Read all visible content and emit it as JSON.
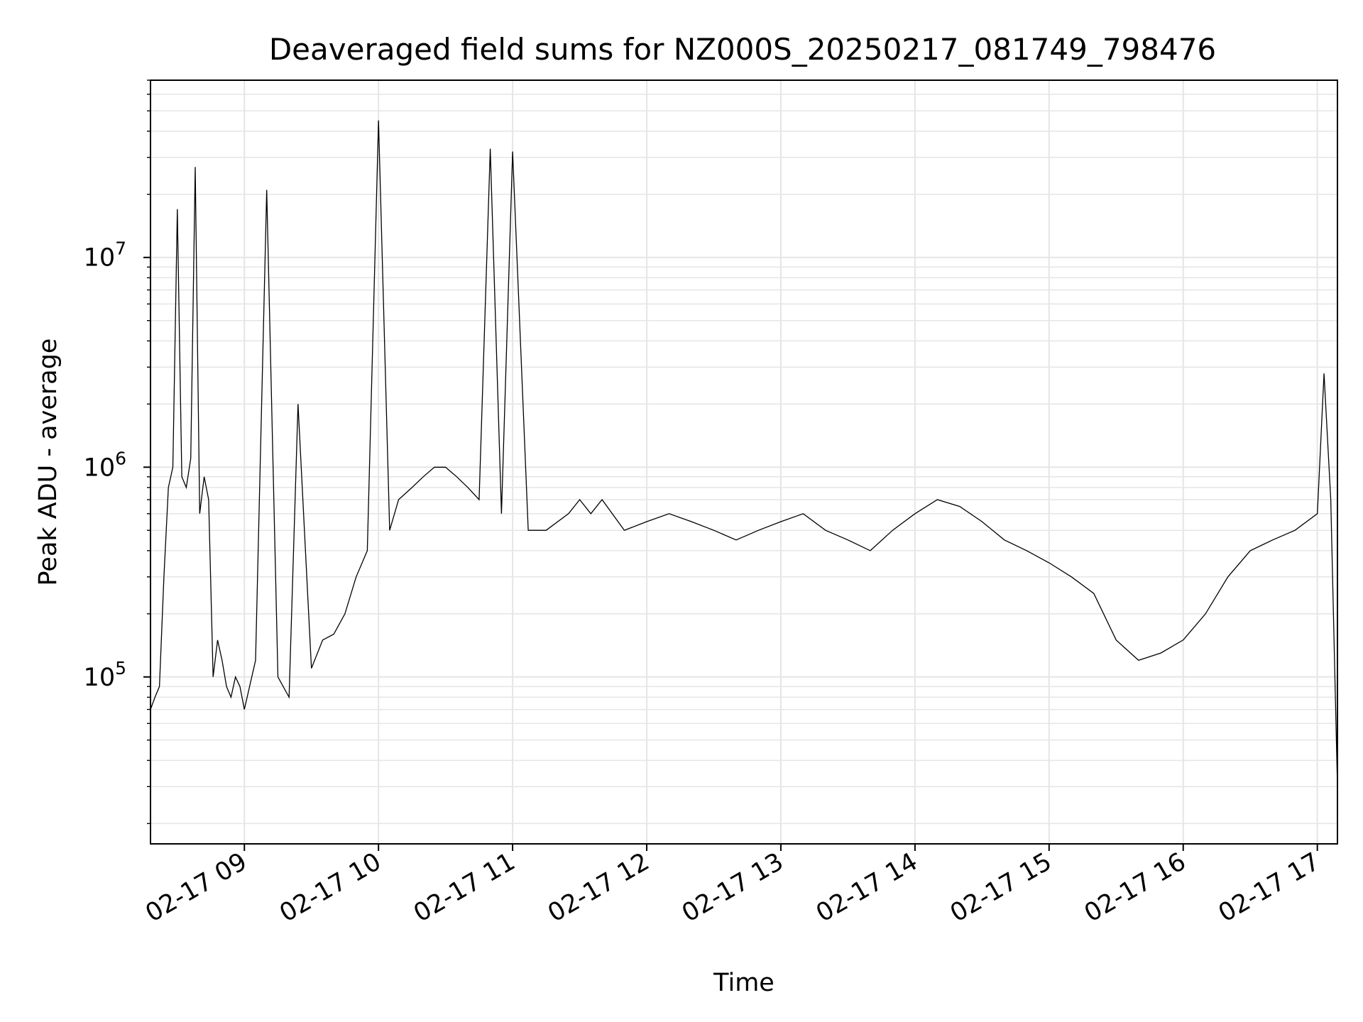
{
  "chart_data": {
    "type": "line",
    "title": "Deaveraged field sums for NZ000S_20250217_081749_798476",
    "xlabel": "Time",
    "ylabel": "Peak ADU - average",
    "y_scale": "log",
    "ylim": [
      16000,
      70000000
    ],
    "xlim": [
      "02-17 08:18",
      "02-17 17:09"
    ],
    "grid": true,
    "line_color": "#000000",
    "grid_color": "#e5e5e5",
    "x_ticks": [
      "02-17 09",
      "02-17 10",
      "02-17 11",
      "02-17 12",
      "02-17 13",
      "02-17 14",
      "02-17 15",
      "02-17 16",
      "02-17 17"
    ],
    "y_ticks": [
      {
        "base": "10",
        "exp": "5"
      },
      {
        "base": "10",
        "exp": "6"
      },
      {
        "base": "10",
        "exp": "7"
      }
    ],
    "series": [
      {
        "x": [
          "02-17 08:18",
          "02-17 08:20",
          "02-17 08:22",
          "02-17 08:24",
          "02-17 08:26",
          "02-17 08:28",
          "02-17 08:30",
          "02-17 08:32",
          "02-17 08:34",
          "02-17 08:36",
          "02-17 08:38",
          "02-17 08:40",
          "02-17 08:42",
          "02-17 08:44",
          "02-17 08:46",
          "02-17 08:48",
          "02-17 08:50",
          "02-17 08:52",
          "02-17 08:54",
          "02-17 08:56",
          "02-17 08:58",
          "02-17 09:00",
          "02-17 09:05",
          "02-17 09:10",
          "02-17 09:15",
          "02-17 09:20",
          "02-17 09:24",
          "02-17 09:30",
          "02-17 09:35",
          "02-17 09:40",
          "02-17 09:45",
          "02-17 09:50",
          "02-17 09:55",
          "02-17 10:00",
          "02-17 10:05",
          "02-17 10:09",
          "02-17 10:15",
          "02-17 10:20",
          "02-17 10:25",
          "02-17 10:30",
          "02-17 10:35",
          "02-17 10:40",
          "02-17 10:45",
          "02-17 10:50",
          "02-17 10:55",
          "02-17 11:00",
          "02-17 11:07",
          "02-17 11:15",
          "02-17 11:25",
          "02-17 11:30",
          "02-17 11:35",
          "02-17 11:40",
          "02-17 11:50",
          "02-17 12:00",
          "02-17 12:10",
          "02-17 12:20",
          "02-17 12:30",
          "02-17 12:40",
          "02-17 12:50",
          "02-17 13:00",
          "02-17 13:10",
          "02-17 13:20",
          "02-17 13:30",
          "02-17 13:40",
          "02-17 13:50",
          "02-17 14:00",
          "02-17 14:10",
          "02-17 14:20",
          "02-17 14:30",
          "02-17 14:40",
          "02-17 14:50",
          "02-17 15:00",
          "02-17 15:10",
          "02-17 15:20",
          "02-17 15:30",
          "02-17 15:40",
          "02-17 15:50",
          "02-17 16:00",
          "02-17 16:10",
          "02-17 16:20",
          "02-17 16:30",
          "02-17 16:40",
          "02-17 16:50",
          "02-17 17:00",
          "02-17 17:03",
          "02-17 17:06",
          "02-17 17:09"
        ],
        "y": [
          70000,
          80000,
          90000,
          300000,
          800000,
          1000000,
          17000000,
          900000,
          800000,
          1100000,
          27000000,
          600000,
          900000,
          700000,
          100000,
          150000,
          120000,
          90000,
          80000,
          100000,
          90000,
          70000,
          120000,
          21000000,
          100000,
          80000,
          2000000,
          110000,
          150000,
          160000,
          200000,
          300000,
          400000,
          45000000,
          500000,
          700000,
          800000,
          900000,
          1000000,
          1000000,
          900000,
          800000,
          700000,
          33000000,
          600000,
          32000000,
          500000,
          500000,
          600000,
          700000,
          600000,
          700000,
          500000,
          550000,
          600000,
          550000,
          500000,
          450000,
          500000,
          550000,
          600000,
          500000,
          450000,
          400000,
          500000,
          600000,
          700000,
          650000,
          550000,
          450000,
          400000,
          350000,
          300000,
          250000,
          150000,
          120000,
          130000,
          150000,
          200000,
          300000,
          400000,
          450000,
          500000,
          600000,
          2800000,
          700000,
          30000
        ]
      }
    ]
  }
}
